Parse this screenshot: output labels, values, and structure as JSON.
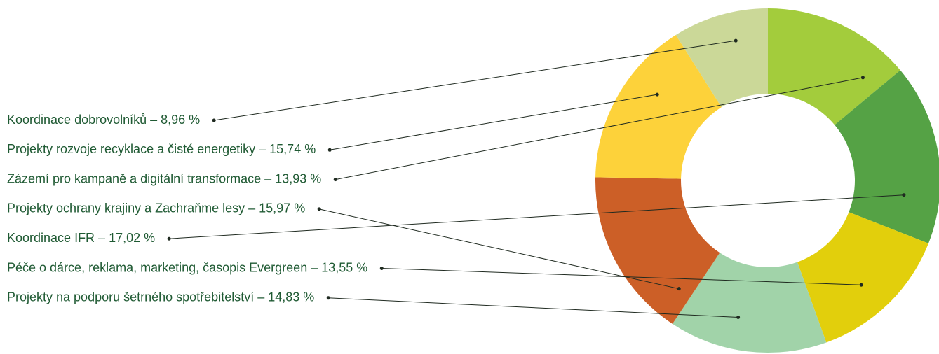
{
  "chart_data": {
    "type": "pie",
    "categories": [
      "Zázemí pro kampaně a digitální transformace – 13,93 %",
      "Koordinace IFR  – 17,02 %",
      "Péče o dárce, reklama, marketing, časopis Evergreen – 13,55 %",
      "Projekty na podporu šetrného spotřebitelství – 14,83 %",
      "Projekty ochrany krajiny a Zachraňme lesy – 15,97 %",
      "Projekty rozvoje recyklace a čisté energetiky – 15,74 %",
      "Koordinace dobrovolníků – 8,96 %"
    ],
    "values": [
      13.93,
      17.02,
      13.55,
      14.83,
      15.97,
      15.74,
      8.96
    ],
    "colors": [
      "#a3cc3c",
      "#55a245",
      "#e2cf0c",
      "#a1d3a9",
      "#cc5f27",
      "#fdd23a",
      "#cbd898"
    ]
  }
}
